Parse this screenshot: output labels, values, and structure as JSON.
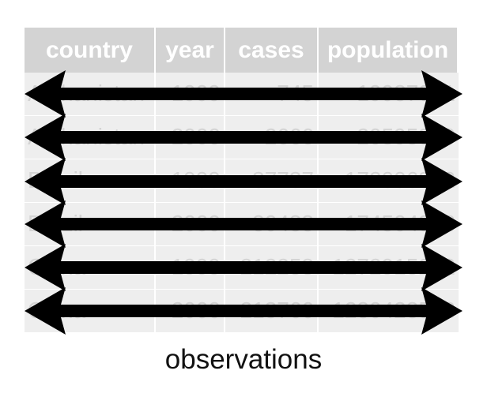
{
  "table": {
    "headers": [
      "country",
      "year",
      "cases",
      "population"
    ],
    "rows": [
      [
        "Afghanistan",
        "1999",
        "745",
        "19987071"
      ],
      [
        "Afghanistan",
        "2000",
        "2666",
        "20595360"
      ],
      [
        "Brazil",
        "1999",
        "37737",
        "172006362"
      ],
      [
        "Brazil",
        "2000",
        "80488",
        "174504898"
      ],
      [
        "China",
        "1999",
        "212258",
        "1272915272"
      ],
      [
        "China",
        "2000",
        "213766",
        "1280428583"
      ]
    ]
  },
  "arrows": {
    "count": 6,
    "color": "#000000"
  },
  "caption": "observations"
}
